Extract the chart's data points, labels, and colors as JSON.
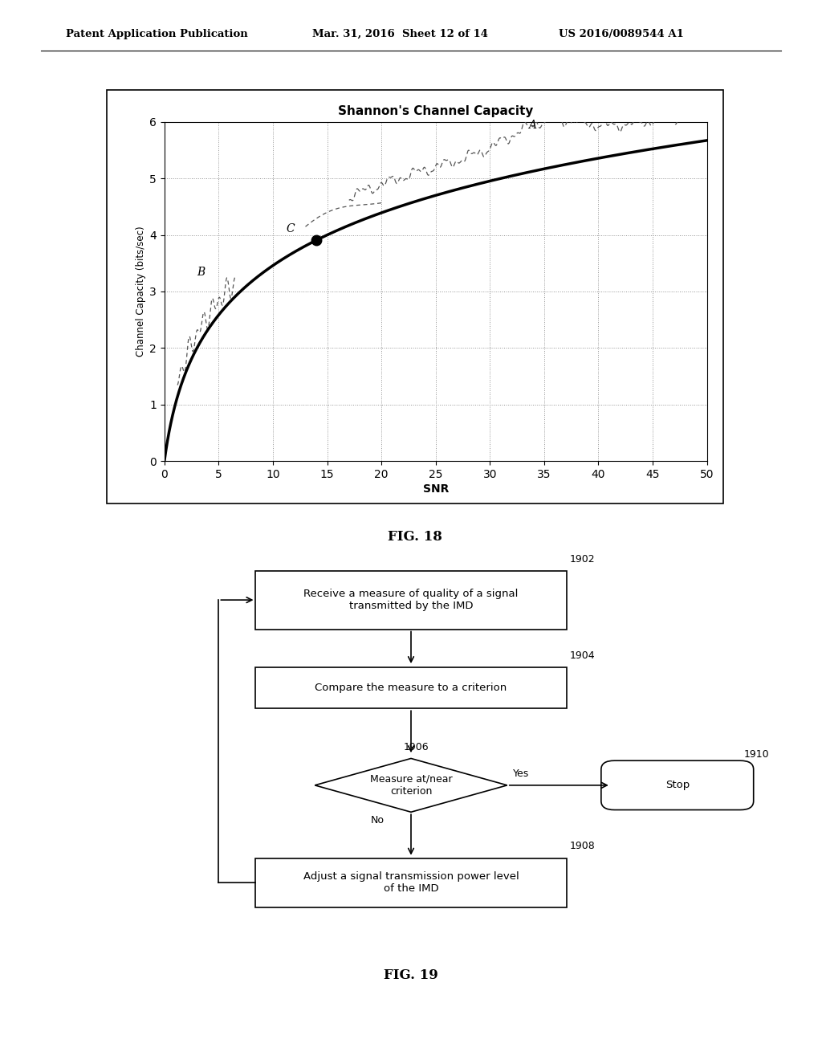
{
  "header_left": "Patent Application Publication",
  "header_center": "Mar. 31, 2016  Sheet 12 of 14",
  "header_right": "US 2016/0089544 A1",
  "fig18_title": "Shannon's Channel Capacity",
  "fig18_xlabel": "SNR",
  "fig18_ylabel": "Channel Capacity (bits/sec)",
  "fig18_xlim": [
    0,
    50
  ],
  "fig18_ylim": [
    0,
    6
  ],
  "fig18_xticks": [
    0,
    5,
    10,
    15,
    20,
    25,
    30,
    35,
    40,
    45,
    50
  ],
  "fig18_yticks": [
    0,
    1,
    2,
    3,
    4,
    5,
    6
  ],
  "fig18_label": "FIG. 18",
  "fig19_label": "FIG. 19",
  "box1902_text": "Receive a measure of quality of a signal\ntransmitted by the IMD",
  "box1902_label": "1902",
  "box1904_text": "Compare the measure to a criterion",
  "box1904_label": "1904",
  "diamond1906_text": "Measure at/near\ncriterion",
  "diamond1906_label": "1906",
  "box1908_text": "Adjust a signal transmission power level\nof the IMD",
  "box1908_label": "1908",
  "oval1910_text": "Stop",
  "oval1910_label": "1910",
  "yes_label": "Yes",
  "no_label": "No",
  "background_color": "#ffffff",
  "text_color": "#000000"
}
